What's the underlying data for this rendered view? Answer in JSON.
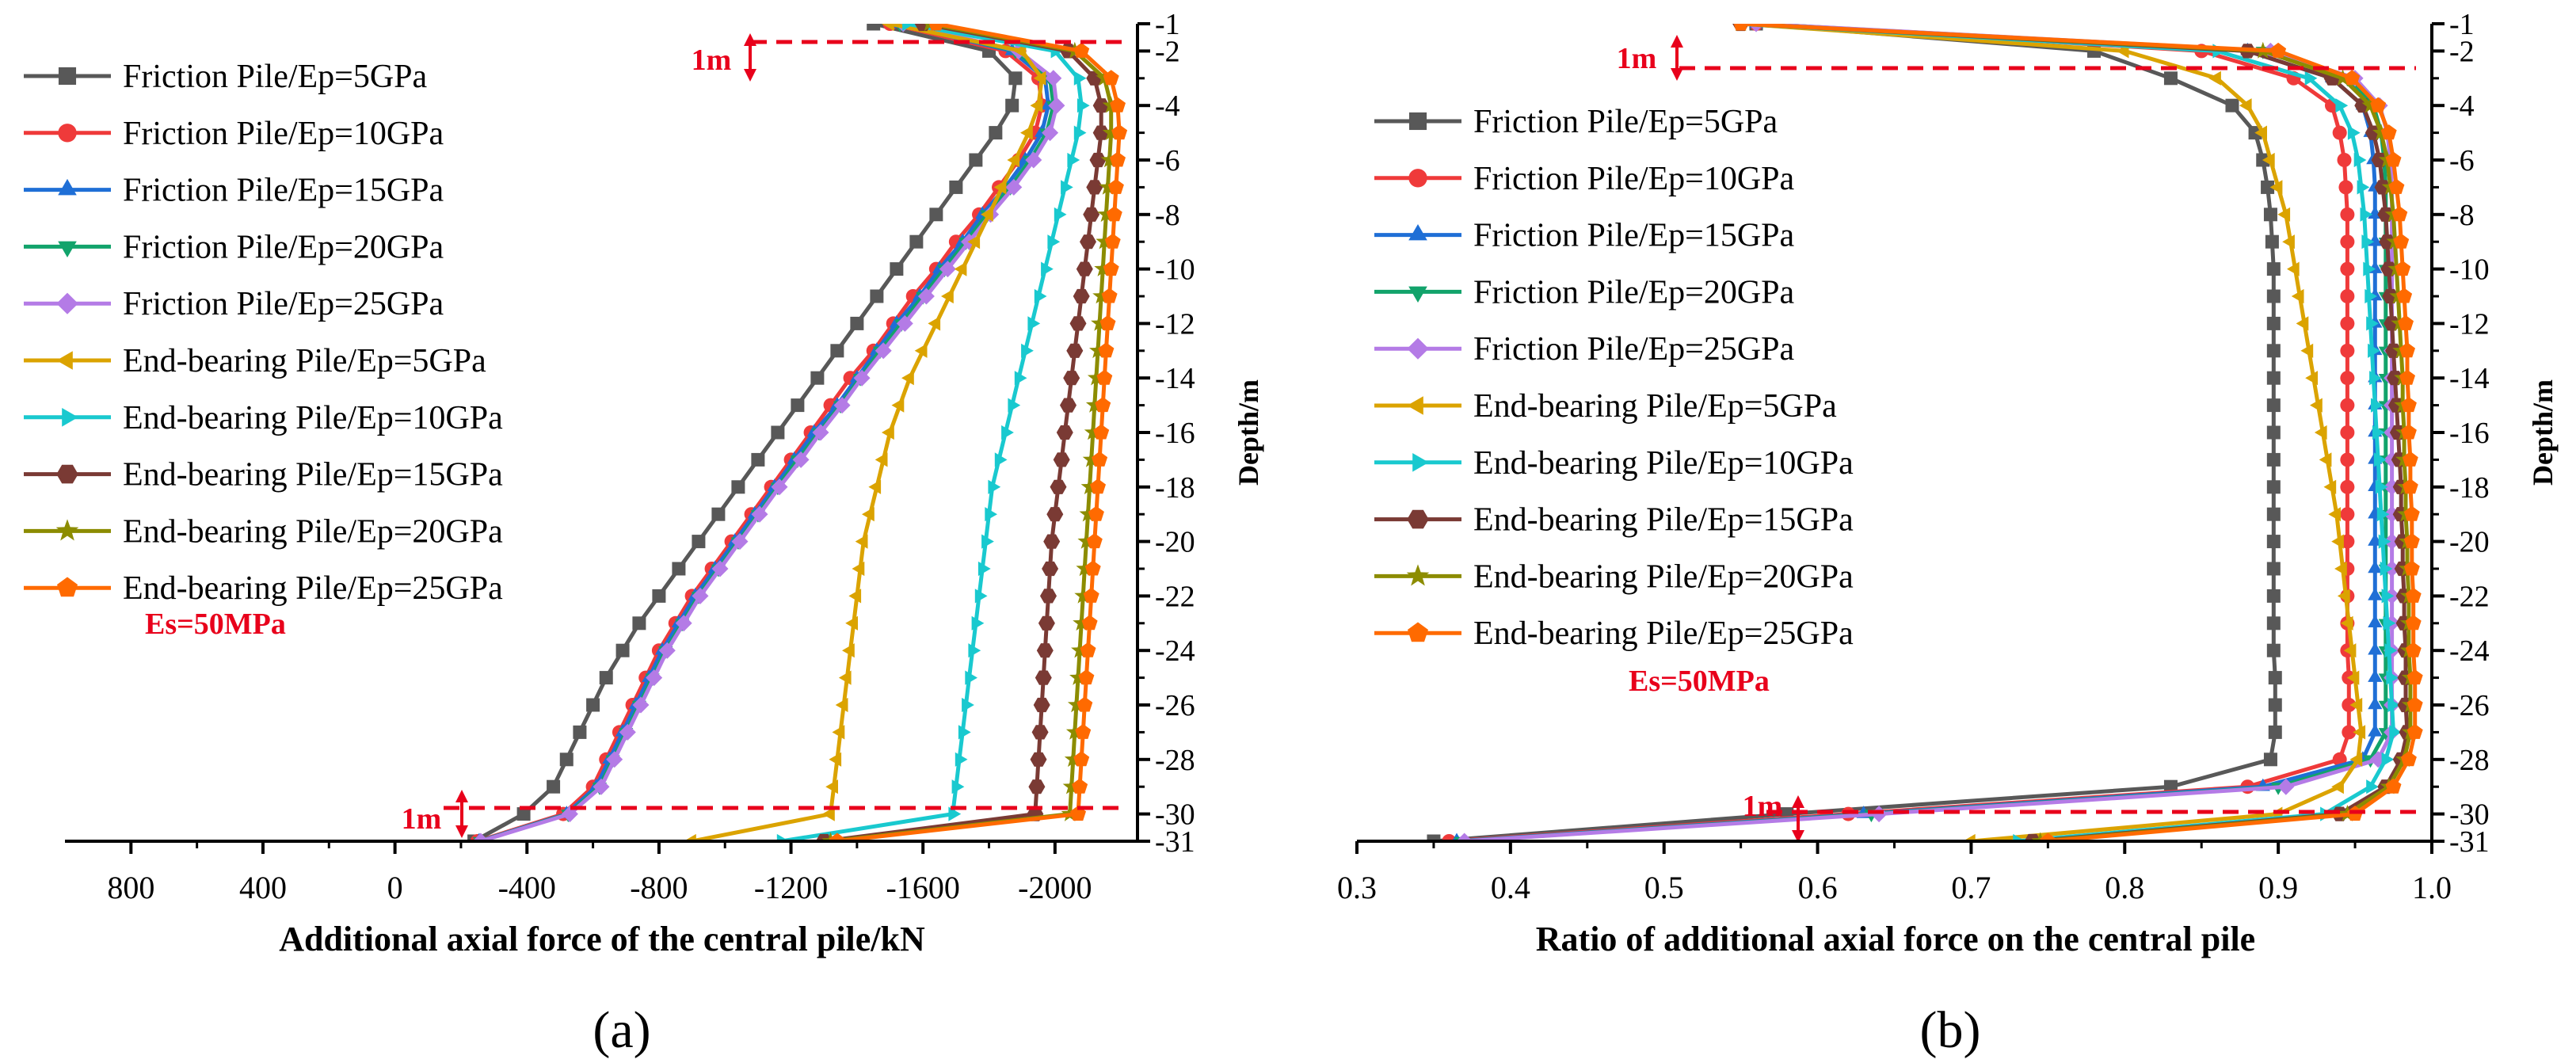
{
  "figure": {
    "panel_a_label": "(a)",
    "panel_b_label": "(b)"
  },
  "styles": {
    "colors": [
      "#585858",
      "#ef3a3a",
      "#1f6fd6",
      "#12a36b",
      "#b47be6",
      "#dba300",
      "#19c9cf",
      "#7a3a34",
      "#8c8c00",
      "#ff6a00"
    ],
    "markers": [
      "square",
      "circle",
      "triangle-up",
      "triangle-down",
      "diamond",
      "triangle-left",
      "triangle-right",
      "hexagon",
      "star",
      "pentagon"
    ],
    "annotation_color": "#e8001b"
  },
  "chart_data": [
    {
      "type": "line",
      "panel": "a",
      "xlabel": "Additional axial force of the central pile/kN",
      "ylabel": "Depth/m",
      "xlim": [
        1000,
        -2250
      ],
      "xticks": [
        800,
        400,
        0,
        -400,
        -800,
        -1200,
        -1600,
        -2000
      ],
      "ylim": [
        -31,
        -1
      ],
      "yticks": [
        -1,
        -2,
        -4,
        -6,
        -8,
        -10,
        -12,
        -14,
        -16,
        -18,
        -20,
        -22,
        -24,
        -26,
        -28,
        -30,
        -31
      ],
      "annotation": "Es=50MPa",
      "bracket_top": "1m",
      "bracket_bottom": "1m",
      "depth": [
        -1,
        -2,
        -3,
        -4,
        -5,
        -6,
        -7,
        -8,
        -9,
        -10,
        -11,
        -12,
        -13,
        -14,
        -15,
        -16,
        -17,
        -18,
        -19,
        -20,
        -21,
        -22,
        -23,
        -24,
        -25,
        -26,
        -27,
        -28,
        -29,
        -30,
        -31
      ],
      "series": [
        {
          "name": "Friction Pile/Ep=5GPa",
          "values": [
            -1450,
            -1800,
            -1880,
            -1870,
            -1820,
            -1760,
            -1700,
            -1640,
            -1580,
            -1520,
            -1460,
            -1400,
            -1340,
            -1280,
            -1220,
            -1160,
            -1100,
            -1040,
            -980,
            -920,
            -860,
            -800,
            -740,
            -690,
            -640,
            -600,
            -560,
            -520,
            -480,
            -390,
            -240
          ]
        },
        {
          "name": "Friction Pile/Ep=10GPa",
          "values": [
            -1500,
            -1850,
            -1950,
            -1960,
            -1940,
            -1890,
            -1830,
            -1770,
            -1700,
            -1640,
            -1570,
            -1510,
            -1450,
            -1380,
            -1320,
            -1260,
            -1200,
            -1140,
            -1080,
            -1020,
            -960,
            -900,
            -850,
            -800,
            -760,
            -720,
            -680,
            -640,
            -600,
            -510,
            -250
          ]
        },
        {
          "name": "Friction Pile/Ep=15GPa",
          "values": [
            -1520,
            -1870,
            -1970,
            -1980,
            -1960,
            -1910,
            -1850,
            -1780,
            -1720,
            -1650,
            -1590,
            -1520,
            -1460,
            -1400,
            -1340,
            -1270,
            -1210,
            -1150,
            -1090,
            -1030,
            -970,
            -910,
            -860,
            -810,
            -770,
            -730,
            -690,
            -650,
            -610,
            -520,
            -255
          ]
        },
        {
          "name": "Friction Pile/Ep=20GPa",
          "values": [
            -1530,
            -1880,
            -1985,
            -1995,
            -1975,
            -1925,
            -1865,
            -1795,
            -1730,
            -1665,
            -1600,
            -1535,
            -1470,
            -1410,
            -1350,
            -1285,
            -1220,
            -1160,
            -1100,
            -1040,
            -980,
            -920,
            -870,
            -820,
            -780,
            -740,
            -700,
            -660,
            -620,
            -525,
            -258
          ]
        },
        {
          "name": "Friction Pile/Ep=25GPa",
          "values": [
            -1540,
            -1890,
            -1995,
            -2005,
            -1985,
            -1935,
            -1875,
            -1805,
            -1740,
            -1675,
            -1610,
            -1545,
            -1480,
            -1415,
            -1355,
            -1290,
            -1230,
            -1165,
            -1105,
            -1045,
            -985,
            -925,
            -875,
            -825,
            -785,
            -745,
            -705,
            -665,
            -625,
            -530,
            -260
          ]
        },
        {
          "name": "End-bearing Pile/Ep=5GPa",
          "values": [
            -1500,
            -1900,
            -1960,
            -1950,
            -1920,
            -1880,
            -1840,
            -1800,
            -1760,
            -1720,
            -1680,
            -1640,
            -1600,
            -1560,
            -1530,
            -1500,
            -1480,
            -1460,
            -1440,
            -1420,
            -1410,
            -1400,
            -1390,
            -1380,
            -1370,
            -1360,
            -1350,
            -1340,
            -1330,
            -1320,
            -900
          ]
        },
        {
          "name": "End-bearing Pile/Ep=10GPa",
          "values": [
            -1550,
            -2000,
            -2070,
            -2080,
            -2070,
            -2050,
            -2030,
            -2010,
            -1990,
            -1970,
            -1950,
            -1930,
            -1910,
            -1890,
            -1870,
            -1850,
            -1830,
            -1810,
            -1800,
            -1790,
            -1780,
            -1770,
            -1760,
            -1750,
            -1740,
            -1730,
            -1720,
            -1710,
            -1700,
            -1690,
            -1170
          ]
        },
        {
          "name": "End-bearing Pile/Ep=15GPa",
          "values": [
            -1600,
            -2040,
            -2120,
            -2140,
            -2140,
            -2130,
            -2120,
            -2110,
            -2100,
            -2090,
            -2080,
            -2070,
            -2060,
            -2050,
            -2040,
            -2030,
            -2020,
            -2010,
            -2000,
            -1990,
            -1985,
            -1980,
            -1975,
            -1970,
            -1965,
            -1960,
            -1955,
            -1950,
            -1945,
            -1940,
            -1300
          ]
        },
        {
          "name": "End-bearing Pile/Ep=20GPa",
          "values": [
            -1620,
            -2060,
            -2150,
            -2170,
            -2170,
            -2165,
            -2160,
            -2155,
            -2150,
            -2145,
            -2140,
            -2135,
            -2130,
            -2125,
            -2120,
            -2115,
            -2110,
            -2105,
            -2100,
            -2095,
            -2090,
            -2085,
            -2080,
            -2075,
            -2070,
            -2065,
            -2060,
            -2055,
            -2050,
            -2045,
            -1320
          ]
        },
        {
          "name": "End-bearing Pile/Ep=25GPa",
          "values": [
            -1640,
            -2080,
            -2170,
            -2190,
            -2195,
            -2190,
            -2185,
            -2180,
            -2175,
            -2170,
            -2165,
            -2160,
            -2155,
            -2150,
            -2145,
            -2140,
            -2135,
            -2130,
            -2125,
            -2120,
            -2115,
            -2110,
            -2105,
            -2100,
            -2095,
            -2090,
            -2085,
            -2080,
            -2075,
            -2070,
            -1340
          ]
        }
      ]
    },
    {
      "type": "line",
      "panel": "b",
      "xlabel": "Ratio of additional axial force on the central pile",
      "ylabel": "Depth/m",
      "xlim": [
        0.3,
        1.0
      ],
      "xticks": [
        0.3,
        0.4,
        0.5,
        0.6,
        0.7,
        0.8,
        0.9,
        1.0
      ],
      "ylim": [
        -31,
        -1
      ],
      "yticks": [
        -1,
        -2,
        -4,
        -6,
        -8,
        -10,
        -12,
        -14,
        -16,
        -18,
        -20,
        -22,
        -24,
        -26,
        -28,
        -30,
        -31
      ],
      "annotation": "Es=50MPa",
      "bracket_top": "1m",
      "bracket_bottom": "1m",
      "depth": [
        -1,
        -2,
        -3,
        -4,
        -5,
        -6,
        -7,
        -8,
        -9,
        -10,
        -11,
        -12,
        -13,
        -14,
        -15,
        -16,
        -17,
        -18,
        -19,
        -20,
        -21,
        -22,
        -23,
        -24,
        -25,
        -26,
        -27,
        -28,
        -29,
        -30,
        -31
      ],
      "series": [
        {
          "name": "Friction Pile/Ep=5GPa",
          "values": [
            0.56,
            0.78,
            0.83,
            0.87,
            0.885,
            0.89,
            0.893,
            0.895,
            0.896,
            0.897,
            0.897,
            0.897,
            0.897,
            0.897,
            0.897,
            0.897,
            0.897,
            0.897,
            0.897,
            0.897,
            0.897,
            0.897,
            0.897,
            0.897,
            0.898,
            0.898,
            0.898,
            0.895,
            0.83,
            0.58,
            0.35
          ]
        },
        {
          "name": "Friction Pile/Ep=10GPa",
          "values": [
            0.56,
            0.85,
            0.91,
            0.935,
            0.94,
            0.943,
            0.944,
            0.945,
            0.945,
            0.945,
            0.945,
            0.945,
            0.945,
            0.945,
            0.945,
            0.945,
            0.945,
            0.945,
            0.945,
            0.945,
            0.945,
            0.945,
            0.945,
            0.945,
            0.946,
            0.946,
            0.946,
            0.94,
            0.88,
            0.62,
            0.36
          ]
        },
        {
          "name": "Friction Pile/Ep=15GPa",
          "values": [
            0.56,
            0.88,
            0.935,
            0.955,
            0.96,
            0.962,
            0.963,
            0.963,
            0.963,
            0.963,
            0.963,
            0.963,
            0.963,
            0.963,
            0.963,
            0.963,
            0.963,
            0.963,
            0.963,
            0.963,
            0.963,
            0.963,
            0.963,
            0.963,
            0.963,
            0.963,
            0.963,
            0.955,
            0.89,
            0.63,
            0.365
          ]
        },
        {
          "name": "Friction Pile/Ep=20GPa",
          "values": [
            0.56,
            0.89,
            0.945,
            0.962,
            0.967,
            0.969,
            0.97,
            0.97,
            0.97,
            0.97,
            0.97,
            0.97,
            0.97,
            0.97,
            0.97,
            0.97,
            0.97,
            0.97,
            0.97,
            0.97,
            0.97,
            0.97,
            0.97,
            0.97,
            0.97,
            0.97,
            0.97,
            0.96,
            0.9,
            0.635,
            0.368
          ]
        },
        {
          "name": "Friction Pile/Ep=25GPa",
          "values": [
            0.56,
            0.895,
            0.95,
            0.966,
            0.971,
            0.973,
            0.974,
            0.974,
            0.974,
            0.974,
            0.974,
            0.974,
            0.974,
            0.974,
            0.974,
            0.974,
            0.974,
            0.974,
            0.974,
            0.974,
            0.974,
            0.974,
            0.974,
            0.974,
            0.974,
            0.974,
            0.974,
            0.965,
            0.905,
            0.64,
            0.37
          ]
        },
        {
          "name": "End-bearing Pile/Ep=5GPa",
          "values": [
            0.55,
            0.8,
            0.86,
            0.88,
            0.89,
            0.895,
            0.9,
            0.905,
            0.908,
            0.911,
            0.914,
            0.917,
            0.92,
            0.923,
            0.926,
            0.929,
            0.932,
            0.935,
            0.938,
            0.94,
            0.942,
            0.944,
            0.946,
            0.948,
            0.95,
            0.952,
            0.954,
            0.952,
            0.94,
            0.9,
            0.7
          ]
        },
        {
          "name": "End-bearing Pile/Ep=10GPa",
          "values": [
            0.55,
            0.86,
            0.92,
            0.94,
            0.948,
            0.952,
            0.954,
            0.956,
            0.957,
            0.958,
            0.959,
            0.96,
            0.961,
            0.962,
            0.963,
            0.964,
            0.965,
            0.966,
            0.967,
            0.968,
            0.969,
            0.97,
            0.971,
            0.972,
            0.973,
            0.974,
            0.975,
            0.97,
            0.96,
            0.93,
            0.73
          ]
        },
        {
          "name": "End-bearing Pile/Ep=15GPa",
          "values": [
            0.55,
            0.88,
            0.935,
            0.955,
            0.962,
            0.966,
            0.968,
            0.97,
            0.971,
            0.972,
            0.973,
            0.974,
            0.975,
            0.976,
            0.977,
            0.978,
            0.979,
            0.98,
            0.98,
            0.981,
            0.981,
            0.982,
            0.982,
            0.983,
            0.983,
            0.983,
            0.984,
            0.98,
            0.97,
            0.94,
            0.74
          ]
        },
        {
          "name": "End-bearing Pile/Ep=20GPa",
          "values": [
            0.55,
            0.89,
            0.942,
            0.96,
            0.967,
            0.971,
            0.973,
            0.975,
            0.976,
            0.977,
            0.978,
            0.979,
            0.98,
            0.981,
            0.981,
            0.982,
            0.982,
            0.983,
            0.983,
            0.984,
            0.984,
            0.985,
            0.985,
            0.985,
            0.986,
            0.986,
            0.986,
            0.982,
            0.972,
            0.945,
            0.745
          ]
        },
        {
          "name": "End-bearing Pile/Ep=25GPa",
          "values": [
            0.55,
            0.9,
            0.948,
            0.965,
            0.972,
            0.975,
            0.977,
            0.979,
            0.98,
            0.981,
            0.982,
            0.983,
            0.984,
            0.984,
            0.985,
            0.985,
            0.986,
            0.986,
            0.987,
            0.987,
            0.987,
            0.988,
            0.988,
            0.988,
            0.989,
            0.989,
            0.989,
            0.985,
            0.975,
            0.95,
            0.75
          ]
        }
      ]
    }
  ]
}
